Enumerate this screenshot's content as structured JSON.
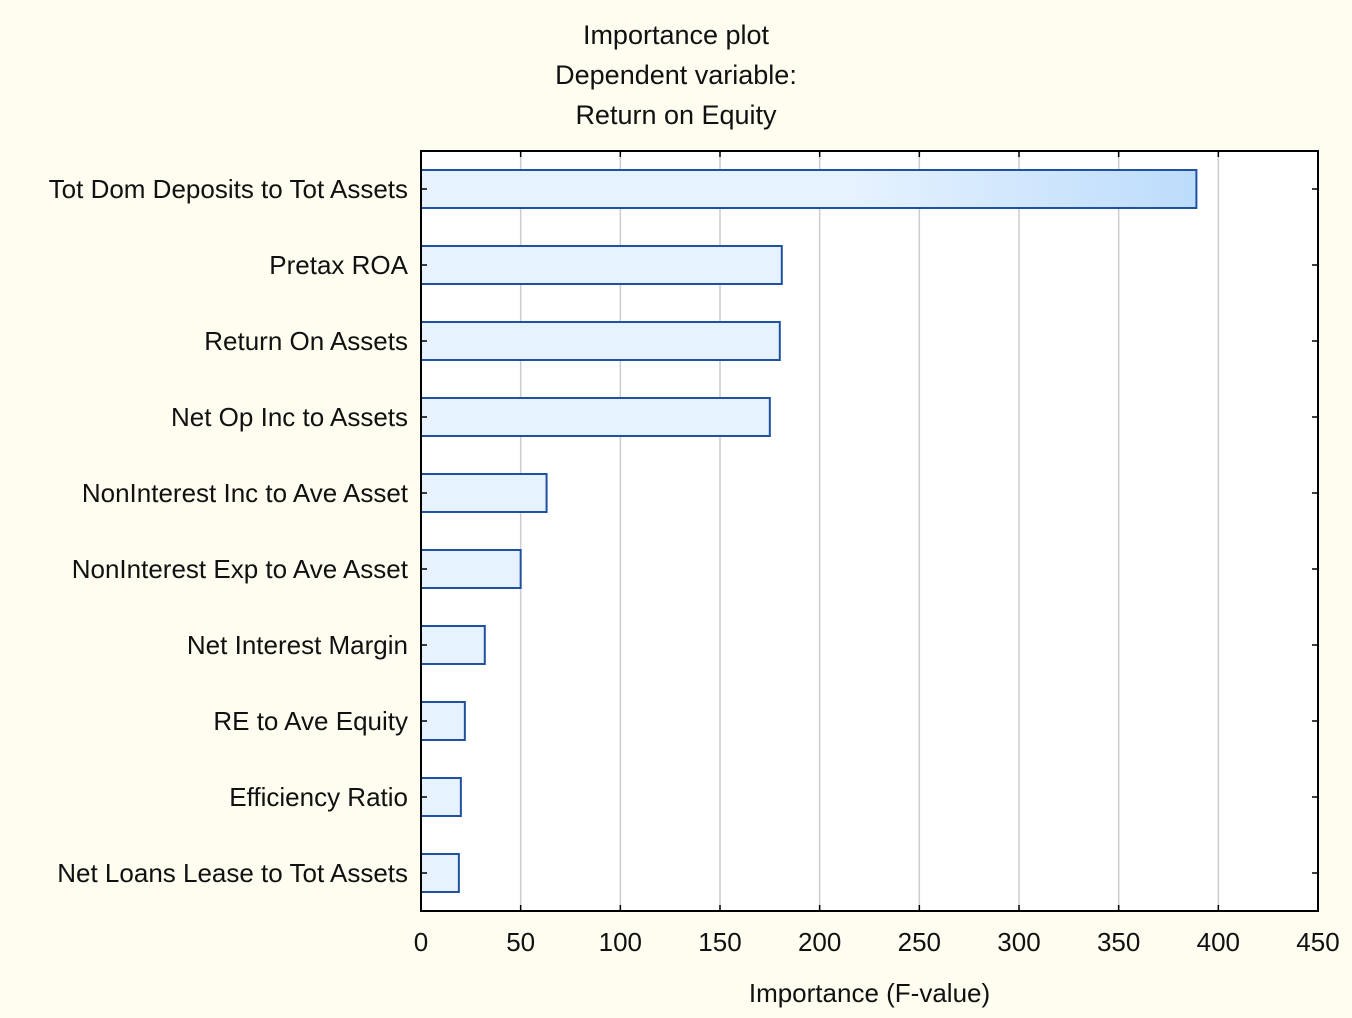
{
  "chart_data": {
    "type": "bar",
    "orientation": "horizontal",
    "title_lines": [
      "Importance plot",
      "Dependent variable:",
      "Return on Equity"
    ],
    "xlabel": "Importance (F-value)",
    "ylabel": "",
    "xlim": [
      0,
      450
    ],
    "xticks": [
      0,
      50,
      100,
      150,
      200,
      250,
      300,
      350,
      400,
      450
    ],
    "grid": "vertical",
    "categories": [
      "Tot Dom Deposits to Tot Assets",
      "Pretax ROA",
      "Return On Assets",
      "Net Op Inc to Assets",
      "NonInterest Inc to Ave Asset",
      "NonInterest Exp to Ave Asset",
      "Net Interest Margin",
      "RE to Ave Equity",
      "Efficiency Ratio",
      "Net Loans Lease to Tot Assets"
    ],
    "values": [
      389,
      181,
      180,
      175,
      63,
      50,
      32,
      22,
      20,
      19
    ],
    "colors": {
      "background": "#fffcf0",
      "plot_background": "#ffffff",
      "bar_fill": "#e6f2ff",
      "bar_fill_highlight": "#bcdcfb",
      "bar_stroke": "#2050a0",
      "grid": "#cccccc",
      "axis": "#000000"
    }
  }
}
